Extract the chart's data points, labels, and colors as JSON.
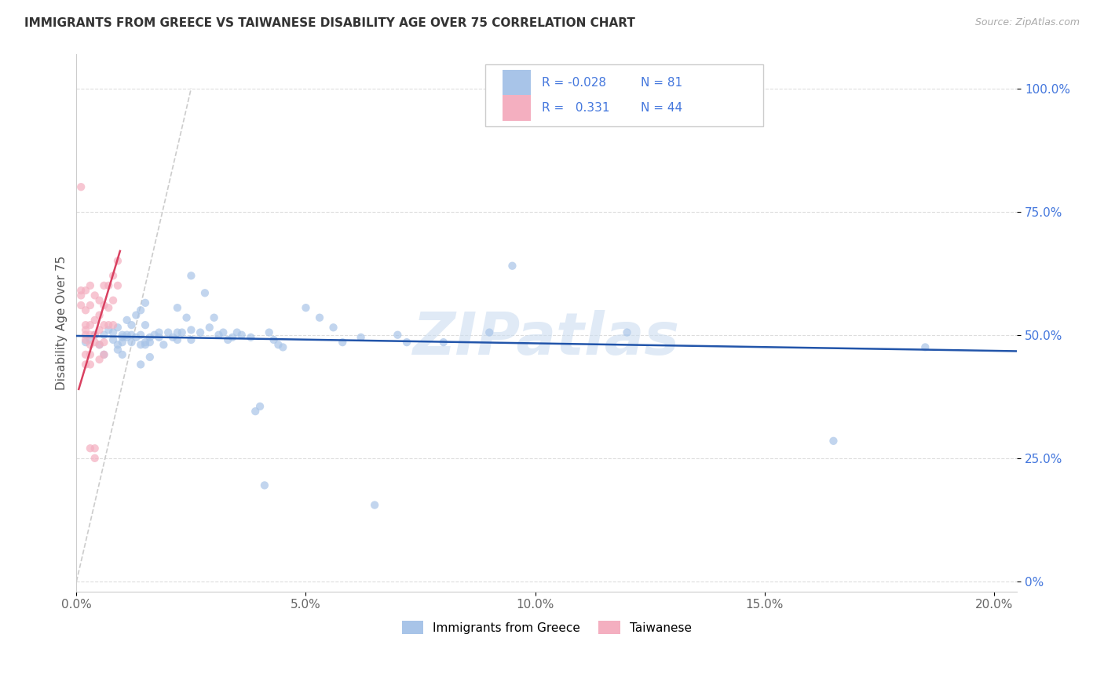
{
  "title": "IMMIGRANTS FROM GREECE VS TAIWANESE DISABILITY AGE OVER 75 CORRELATION CHART",
  "source": "Source: ZipAtlas.com",
  "ylabel": "Disability Age Over 75",
  "x_tick_labels": [
    "0.0%",
    "5.0%",
    "10.0%",
    "15.0%",
    "20.0%"
  ],
  "x_ticks": [
    0.0,
    0.05,
    0.1,
    0.15,
    0.2
  ],
  "y_ticks": [
    0.0,
    25.0,
    50.0,
    75.0,
    100.0
  ],
  "y_tick_labels": [
    "0%",
    "25.0%",
    "50.0%",
    "75.0%",
    "100.0%"
  ],
  "xlim": [
    0.0,
    0.205
  ],
  "ylim": [
    -2.0,
    107.0
  ],
  "legend_r_blue": "-0.028",
  "legend_n_blue": "81",
  "legend_r_pink": "0.331",
  "legend_n_pink": "44",
  "legend_label_blue": "Immigrants from Greece",
  "legend_label_pink": "Taiwanese",
  "watermark": "ZIPatlas",
  "blue_color": "#a8c4e8",
  "pink_color": "#f4afc0",
  "blue_line_color": "#2255aa",
  "pink_line_color": "#d94060",
  "text_blue": "#4477dd",
  "text_red": "#dd4455",
  "scatter_alpha": 0.7,
  "scatter_size": 55,
  "blue_scatter": [
    [
      0.002,
      48.5
    ],
    [
      0.003,
      49.0
    ],
    [
      0.004,
      50.0
    ],
    [
      0.005,
      48.0
    ],
    [
      0.006,
      50.0
    ],
    [
      0.006,
      46.0
    ],
    [
      0.007,
      51.0
    ],
    [
      0.008,
      50.5
    ],
    [
      0.008,
      49.0
    ],
    [
      0.009,
      51.5
    ],
    [
      0.009,
      48.0
    ],
    [
      0.009,
      47.0
    ],
    [
      0.01,
      50.0
    ],
    [
      0.01,
      49.5
    ],
    [
      0.01,
      48.5
    ],
    [
      0.01,
      46.0
    ],
    [
      0.011,
      53.0
    ],
    [
      0.011,
      50.0
    ],
    [
      0.011,
      49.5
    ],
    [
      0.012,
      52.0
    ],
    [
      0.012,
      50.0
    ],
    [
      0.012,
      48.5
    ],
    [
      0.013,
      54.0
    ],
    [
      0.013,
      49.5
    ],
    [
      0.014,
      55.0
    ],
    [
      0.014,
      50.0
    ],
    [
      0.014,
      48.0
    ],
    [
      0.014,
      44.0
    ],
    [
      0.015,
      56.5
    ],
    [
      0.015,
      52.0
    ],
    [
      0.015,
      48.5
    ],
    [
      0.015,
      48.0
    ],
    [
      0.016,
      49.5
    ],
    [
      0.016,
      48.5
    ],
    [
      0.016,
      45.5
    ],
    [
      0.017,
      50.0
    ],
    [
      0.018,
      50.5
    ],
    [
      0.018,
      49.5
    ],
    [
      0.019,
      48.0
    ],
    [
      0.02,
      50.5
    ],
    [
      0.021,
      49.5
    ],
    [
      0.022,
      55.5
    ],
    [
      0.022,
      50.5
    ],
    [
      0.022,
      49.0
    ],
    [
      0.023,
      50.5
    ],
    [
      0.024,
      53.5
    ],
    [
      0.025,
      62.0
    ],
    [
      0.025,
      51.0
    ],
    [
      0.025,
      49.0
    ],
    [
      0.027,
      50.5
    ],
    [
      0.028,
      58.5
    ],
    [
      0.029,
      51.5
    ],
    [
      0.03,
      53.5
    ],
    [
      0.031,
      50.0
    ],
    [
      0.032,
      50.5
    ],
    [
      0.033,
      49.0
    ],
    [
      0.034,
      49.5
    ],
    [
      0.035,
      50.5
    ],
    [
      0.036,
      50.0
    ],
    [
      0.038,
      49.5
    ],
    [
      0.039,
      34.5
    ],
    [
      0.04,
      35.5
    ],
    [
      0.041,
      19.5
    ],
    [
      0.042,
      50.5
    ],
    [
      0.043,
      49.0
    ],
    [
      0.044,
      48.0
    ],
    [
      0.045,
      47.5
    ],
    [
      0.05,
      55.5
    ],
    [
      0.053,
      53.5
    ],
    [
      0.056,
      51.5
    ],
    [
      0.058,
      48.5
    ],
    [
      0.062,
      49.5
    ],
    [
      0.065,
      15.5
    ],
    [
      0.07,
      50.0
    ],
    [
      0.072,
      48.5
    ],
    [
      0.08,
      48.5
    ],
    [
      0.09,
      50.5
    ],
    [
      0.095,
      64.0
    ],
    [
      0.12,
      50.5
    ],
    [
      0.165,
      28.5
    ],
    [
      0.185,
      47.5
    ]
  ],
  "pink_scatter": [
    [
      0.001,
      80.0
    ],
    [
      0.001,
      59.0
    ],
    [
      0.001,
      58.0
    ],
    [
      0.001,
      56.0
    ],
    [
      0.002,
      59.0
    ],
    [
      0.002,
      55.0
    ],
    [
      0.002,
      52.0
    ],
    [
      0.002,
      51.0
    ],
    [
      0.002,
      50.0
    ],
    [
      0.002,
      49.0
    ],
    [
      0.002,
      46.0
    ],
    [
      0.002,
      44.0
    ],
    [
      0.003,
      60.0
    ],
    [
      0.003,
      56.0
    ],
    [
      0.003,
      52.0
    ],
    [
      0.003,
      50.0
    ],
    [
      0.003,
      48.0
    ],
    [
      0.003,
      46.0
    ],
    [
      0.003,
      44.0
    ],
    [
      0.003,
      27.0
    ],
    [
      0.004,
      58.0
    ],
    [
      0.004,
      53.0
    ],
    [
      0.004,
      50.0
    ],
    [
      0.004,
      48.5
    ],
    [
      0.004,
      27.0
    ],
    [
      0.004,
      25.0
    ],
    [
      0.005,
      57.0
    ],
    [
      0.005,
      54.0
    ],
    [
      0.005,
      51.0
    ],
    [
      0.005,
      48.0
    ],
    [
      0.005,
      45.0
    ],
    [
      0.006,
      60.0
    ],
    [
      0.006,
      56.0
    ],
    [
      0.006,
      52.0
    ],
    [
      0.006,
      48.5
    ],
    [
      0.006,
      46.0
    ],
    [
      0.007,
      60.0
    ],
    [
      0.007,
      55.5
    ],
    [
      0.007,
      52.0
    ],
    [
      0.008,
      62.0
    ],
    [
      0.008,
      57.0
    ],
    [
      0.008,
      52.0
    ],
    [
      0.009,
      65.0
    ],
    [
      0.009,
      60.0
    ]
  ],
  "blue_trend_x": [
    0.0,
    0.205
  ],
  "blue_trend_y": [
    49.8,
    46.7
  ],
  "pink_trend_x": [
    0.0005,
    0.0095
  ],
  "pink_trend_y": [
    39.0,
    67.0
  ],
  "ref_line_x": [
    0.0,
    0.025
  ],
  "ref_line_y": [
    0.0,
    100.0
  ]
}
